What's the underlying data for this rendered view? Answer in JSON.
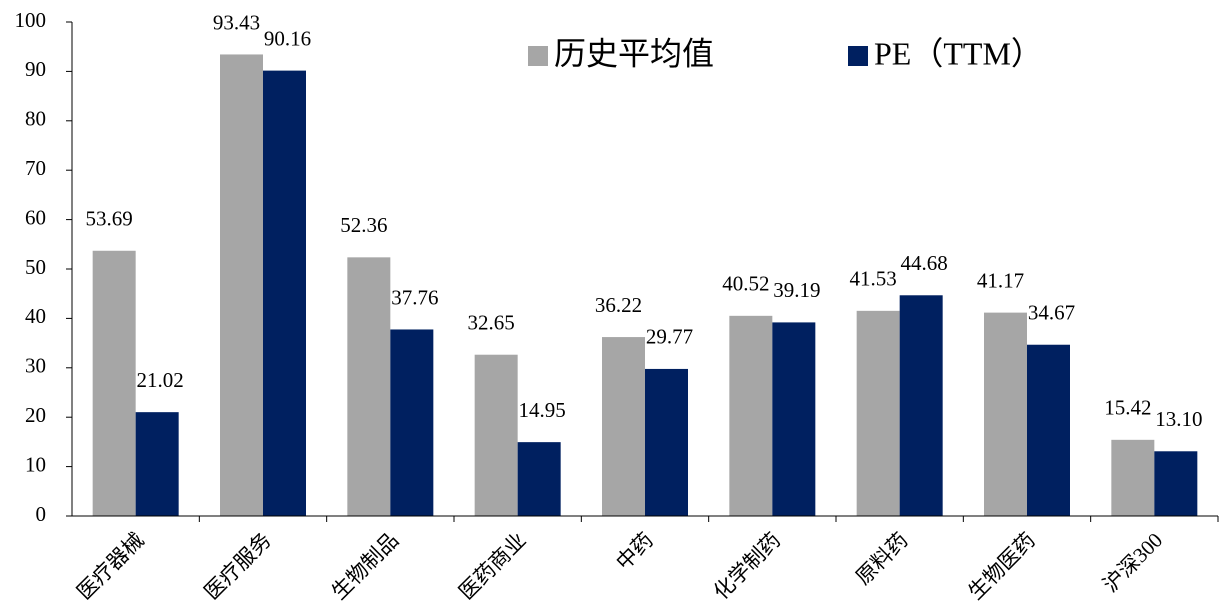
{
  "chart_data": {
    "type": "bar",
    "categories": [
      "医疗器械",
      "医疗服务",
      "生物制品",
      "医药商业",
      "中药",
      "化学制药",
      "原料药",
      "生物医药",
      "沪深300"
    ],
    "series": [
      {
        "name": "历史平均值",
        "color": "#a6a6a6",
        "values": [
          53.69,
          93.43,
          52.36,
          32.65,
          36.22,
          40.52,
          41.53,
          41.17,
          15.42
        ],
        "value_labels": [
          "53.69",
          "93.43",
          "52.36",
          "32.65",
          "36.22",
          "40.52",
          "41.53",
          "41.17",
          "15.42"
        ]
      },
      {
        "name": "PE（TTM）",
        "color": "#002060",
        "values": [
          21.02,
          90.16,
          37.76,
          14.95,
          29.77,
          39.19,
          44.68,
          34.67,
          13.1
        ],
        "value_labels": [
          "21.02",
          "90.16",
          "37.76",
          "14.95",
          "29.77",
          "39.19",
          "44.68",
          "34.67",
          "13.10"
        ]
      }
    ],
    "ylim": [
      0,
      100
    ],
    "yticks": [
      0,
      10,
      20,
      30,
      40,
      50,
      60,
      70,
      80,
      90,
      100
    ],
    "legend": "top"
  }
}
